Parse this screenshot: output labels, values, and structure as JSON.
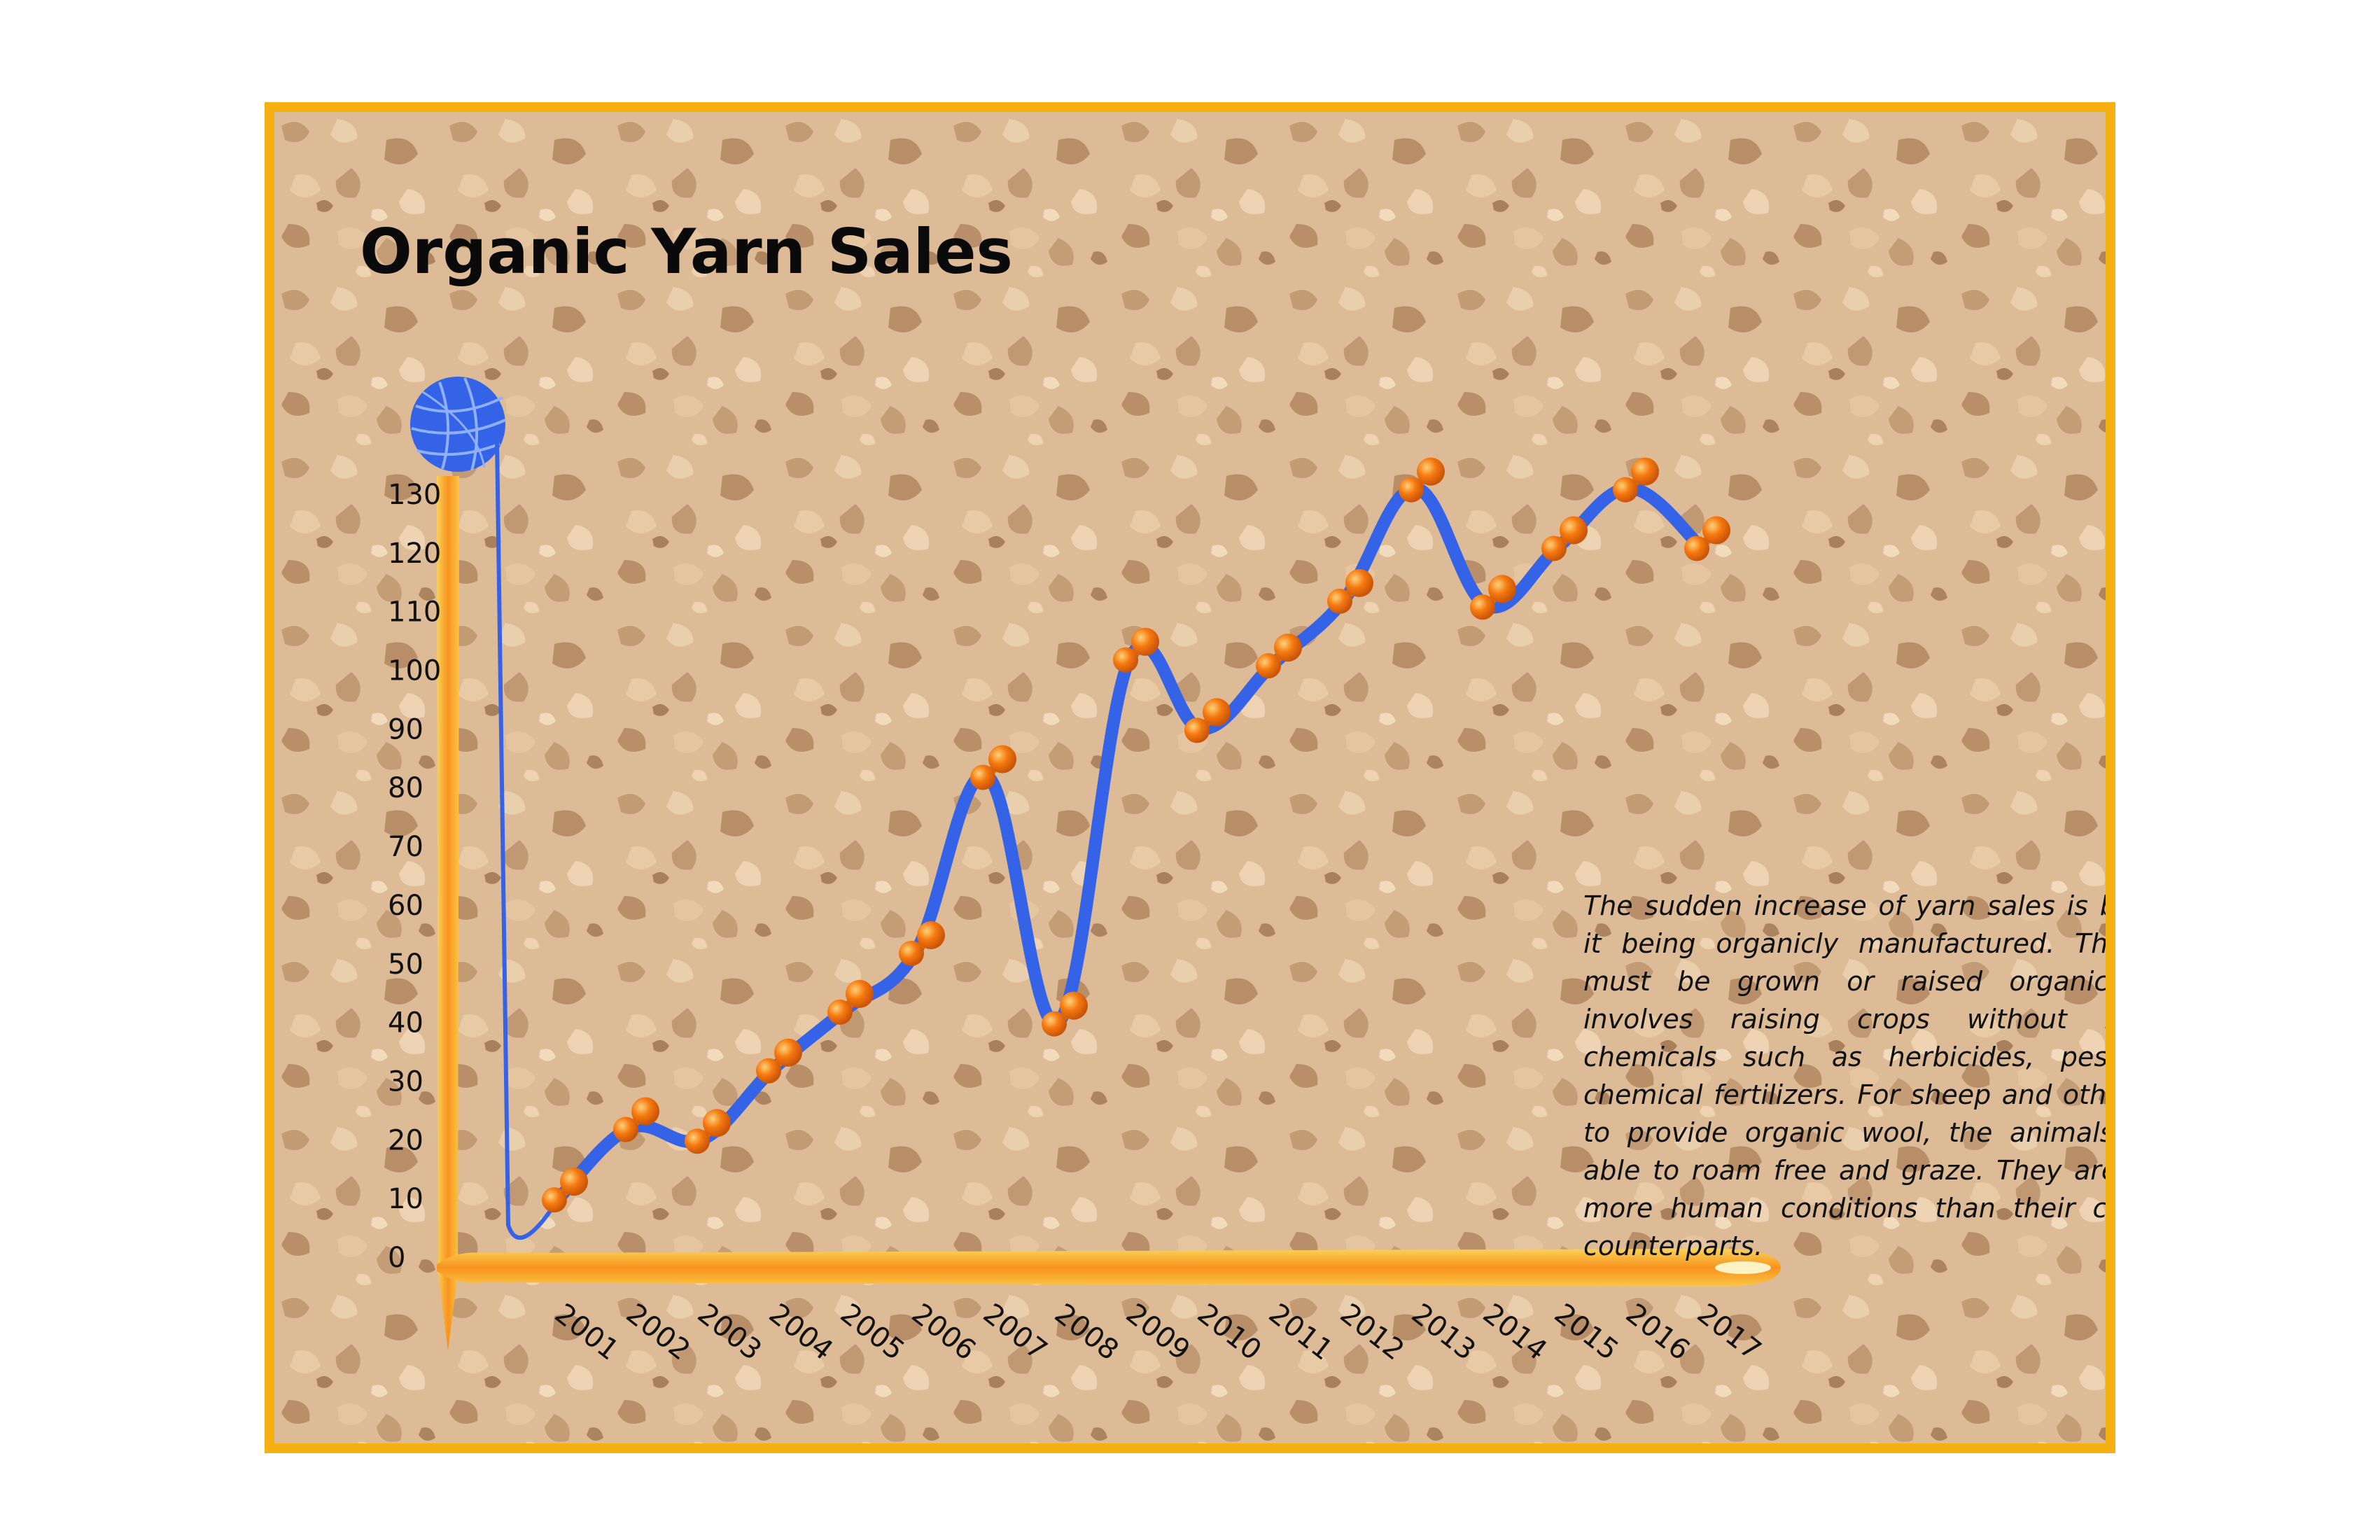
{
  "chart_data": {
    "type": "line",
    "title": "Organic Yarn Sales",
    "xlabel": "",
    "ylabel": "",
    "ylim": [
      0,
      130
    ],
    "yticks": [
      0,
      10,
      20,
      30,
      40,
      50,
      60,
      70,
      80,
      90,
      100,
      110,
      120,
      130
    ],
    "categories": [
      "2001",
      "2002",
      "2003",
      "2004",
      "2005",
      "2006",
      "2007",
      "2008",
      "2009",
      "2010",
      "2011",
      "2012",
      "2013",
      "2014",
      "2015",
      "2016",
      "2017"
    ],
    "values": [
      10,
      22,
      20,
      32,
      42,
      52,
      82,
      40,
      102,
      90,
      101,
      112,
      131,
      111,
      121,
      131,
      121
    ],
    "grid": false,
    "legend": "none",
    "annotation": "The sudden increase of yarn sales is because of it being organicly manufactured. These yarns must be grown or raised organically. That involves raising crops without man-made chemicals such as herbicides, pesticides or chemical fertilizers. For sheep and other animals to provide organic wool, the animals must be able to roam free and graze. They are raised in more human conditions than their commercial counterparts.",
    "colors": {
      "line": "#3563e8",
      "marker": "#f6790f",
      "axis": "#f39a1e",
      "background": "#d9b894",
      "border": "#f7b012"
    }
  }
}
